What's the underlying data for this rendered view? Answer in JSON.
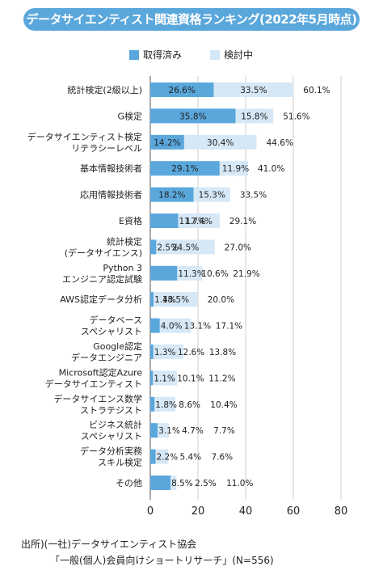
{
  "title": "データサイエンティスト関連資格ランキング(2022年5月時点)",
  "legend": [
    {
      "label": "取得済み",
      "color": "#5aa7dc"
    },
    {
      "label": "検討中",
      "color": "#d6e8f6"
    }
  ],
  "chart_data": {
    "type": "bar",
    "orientation": "horizontal",
    "stacked": true,
    "categories": [
      "統計検定(2級以上)",
      "G検定",
      "データサイエンティスト検定\nリテラシーレベル",
      "基本情報技術者",
      "応用情報技術者",
      "E資格",
      "統計検定\n(データサイエンス)",
      "Python 3\nエンジニア認定試験",
      "AWS認定データ分析",
      "データベース\nスペシャリスト",
      "Google認定\nデータエンジニア",
      "Microsoft認定Azure\nデータサイエンティスト",
      "データサイエンス数学\nストラテジスト",
      "ビジネス統計\nスペシャリスト",
      "データ分析実務\nスキル検定",
      "その他"
    ],
    "series": [
      {
        "name": "取得済み",
        "values": [
          26.6,
          35.8,
          14.2,
          29.1,
          18.2,
          11.7,
          2.5,
          11.3,
          1.4,
          4.0,
          1.3,
          1.1,
          1.8,
          3.1,
          2.2,
          8.5
        ]
      },
      {
        "name": "検討中",
        "values": [
          33.5,
          15.8,
          30.4,
          11.9,
          15.3,
          17.4,
          24.5,
          10.6,
          18.5,
          13.1,
          12.6,
          10.1,
          8.6,
          4.7,
          5.4,
          2.5
        ]
      }
    ],
    "value_labels": {
      "acquired": [
        "26.6%",
        "35.8%",
        "14.2%",
        "29.1%",
        "18.2%",
        "11.7%",
        "2.5%",
        "11.3%",
        "1.4%",
        "4.0%",
        "1.3%",
        "1.1%",
        "1.8%",
        "3.1%",
        "2.2%",
        "8.5%"
      ],
      "considering": [
        "33.5%",
        "15.8%",
        "30.4%",
        "11.9%",
        "15.3%",
        "17.4%",
        "24.5%",
        "10.6%",
        "18.5%",
        "13.1%",
        "12.6%",
        "10.1%",
        "8.6%",
        "4.7%",
        "5.4%",
        "2.5%"
      ],
      "total": [
        "60.1%",
        "51.6%",
        "44.6%",
        "41.0%",
        "33.5%",
        "29.1%",
        "27.0%",
        "21.9%",
        "20.0%",
        "17.1%",
        "13.8%",
        "11.2%",
        "10.4%",
        "7.7%",
        "7.6%",
        "11.0%"
      ]
    },
    "xlim": [
      0,
      80
    ],
    "xticks": [
      0,
      20,
      40,
      60,
      80
    ],
    "grid": true,
    "legend_position": "top"
  },
  "source": {
    "line1": "出所)(一社)データサイエンティスト協会",
    "line2": "「一般(個人)会員向けショートリサーチ」(N=556)"
  }
}
